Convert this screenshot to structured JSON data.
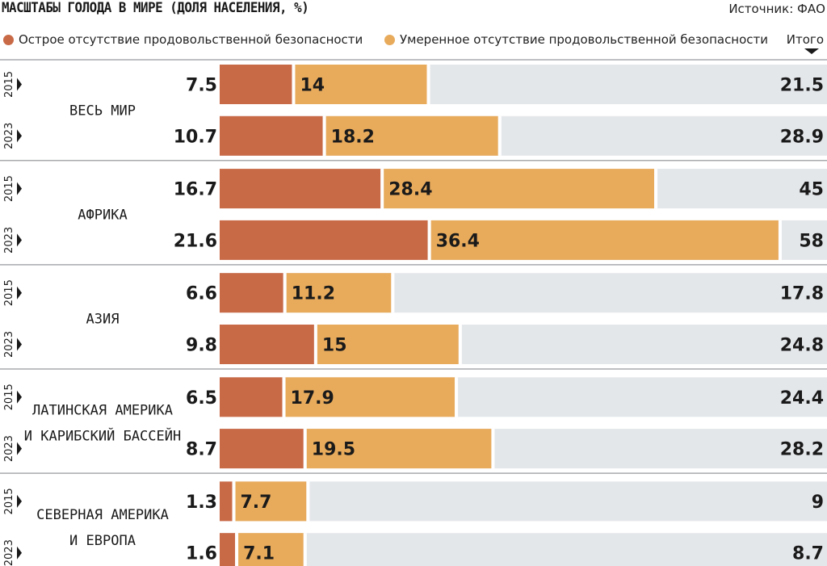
{
  "title": "МАСШТАБЫ ГОЛОДА В МИРЕ (ДОЛЯ НАСЕЛЕНИЯ, %)",
  "source": "Источник: ФАО",
  "legend": {
    "acute": "Острое отсутствие продовольственной безопасности",
    "moderate": "Умеренное отсутствие продовольственной безопасности",
    "total": "Итого"
  },
  "colors": {
    "acute": "#c96a47",
    "moderate": "#e8ab5c",
    "track": "#e4e7ea",
    "divider": "#a8aaad"
  },
  "chart_data": {
    "type": "bar",
    "stacked": true,
    "orientation": "horizontal",
    "title": "МАСШТАБЫ ГОЛОДА В МИРЕ (ДОЛЯ НАСЕЛЕНИЯ, %)",
    "series_names": [
      "Острое отсутствие продовольственной безопасности",
      "Умеренное отсутствие продовольственной безопасности"
    ],
    "xlim": [
      0,
      60
    ],
    "groups": [
      {
        "region": [
          "ВЕСЬ МИР"
        ],
        "rows": [
          {
            "year": "2015",
            "acute": 7.5,
            "moderate": 14,
            "total": "21.5"
          },
          {
            "year": "2023",
            "acute": 10.7,
            "moderate": 18.2,
            "total": "28.9"
          }
        ]
      },
      {
        "region": [
          "АФРИКА"
        ],
        "rows": [
          {
            "year": "2015",
            "acute": 16.7,
            "moderate": 28.4,
            "total": "45"
          },
          {
            "year": "2023",
            "acute": 21.6,
            "moderate": 36.4,
            "total": "58"
          }
        ]
      },
      {
        "region": [
          "АЗИЯ"
        ],
        "rows": [
          {
            "year": "2015",
            "acute": 6.6,
            "moderate": 11.2,
            "total": "17.8"
          },
          {
            "year": "2023",
            "acute": 9.8,
            "moderate": 15,
            "total": "24.8"
          }
        ]
      },
      {
        "region": [
          "ЛАТИНСКАЯ АМЕРИКА",
          "И КАРИБСКИЙ БАССЕЙН"
        ],
        "rows": [
          {
            "year": "2015",
            "acute": 6.5,
            "moderate": 17.9,
            "total": "24.4"
          },
          {
            "year": "2023",
            "acute": 8.7,
            "moderate": 19.5,
            "total": "28.2"
          }
        ]
      },
      {
        "region": [
          "СЕВЕРНАЯ АМЕРИКА",
          "И ЕВРОПА"
        ],
        "rows": [
          {
            "year": "2015",
            "acute": 1.3,
            "moderate": 7.7,
            "total": "9"
          },
          {
            "year": "2023",
            "acute": 1.6,
            "moderate": 7.1,
            "total": "8.7"
          }
        ]
      }
    ]
  }
}
